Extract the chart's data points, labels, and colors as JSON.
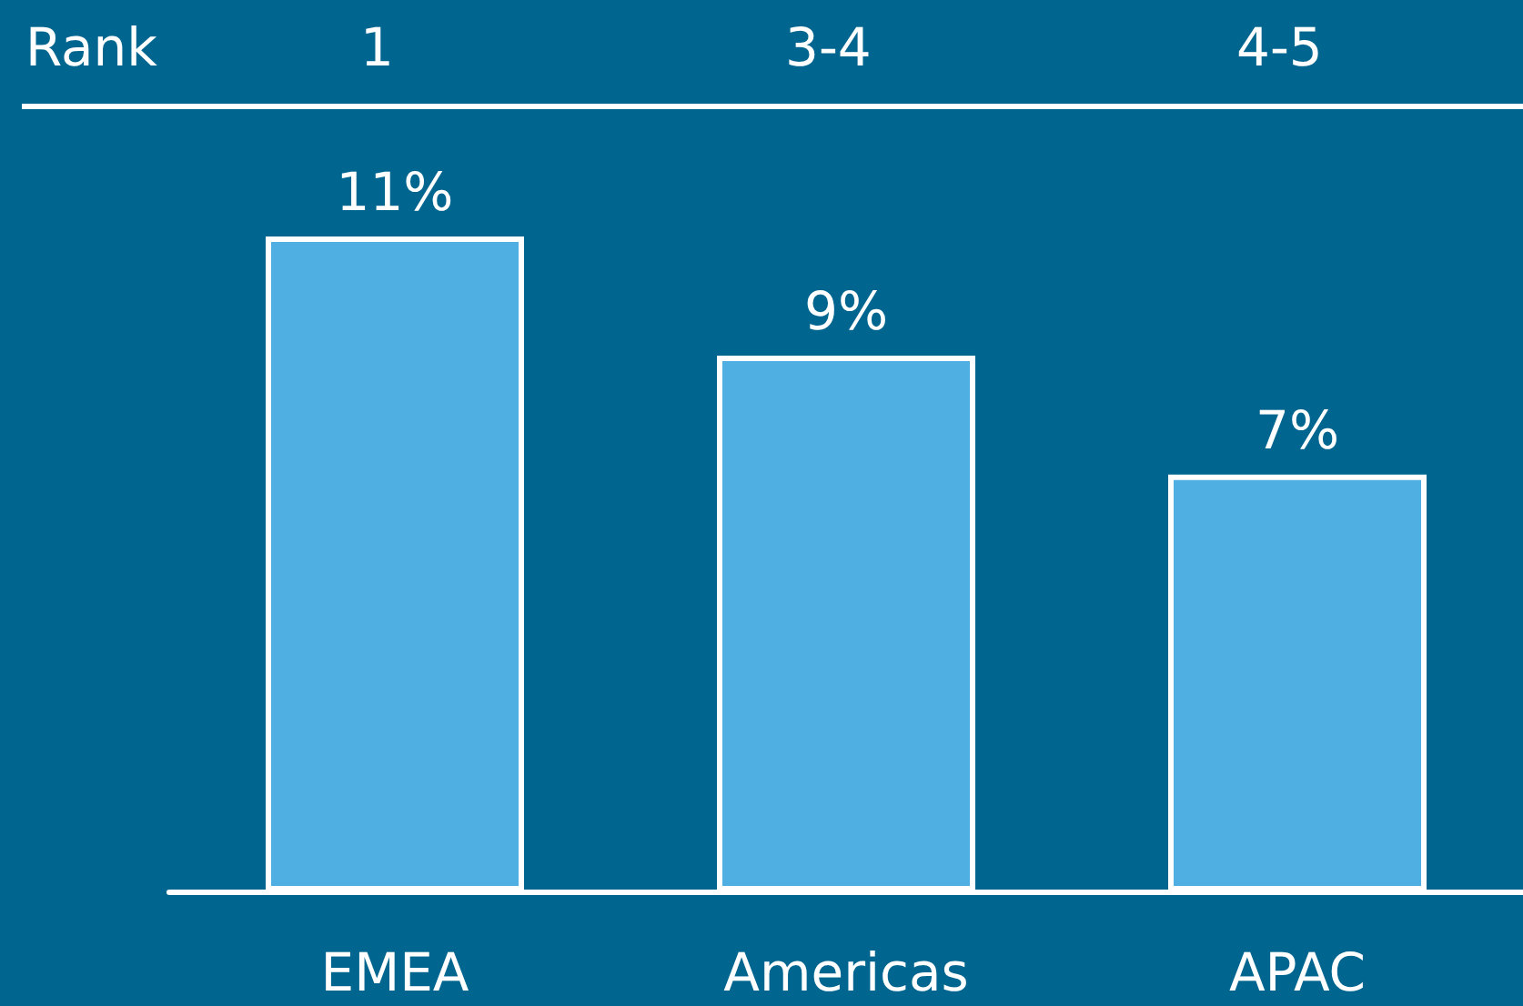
{
  "chart_data": {
    "type": "bar",
    "categories": [
      "EMEA",
      "Americas",
      "APAC"
    ],
    "values": [
      11,
      9,
      7
    ],
    "color": "#4fafe3",
    "value_labels": [
      "11%",
      "9%",
      "7%"
    ],
    "annotations": [
      "Rank",
      "1",
      "3-4",
      "4-5"
    ]
  }
}
